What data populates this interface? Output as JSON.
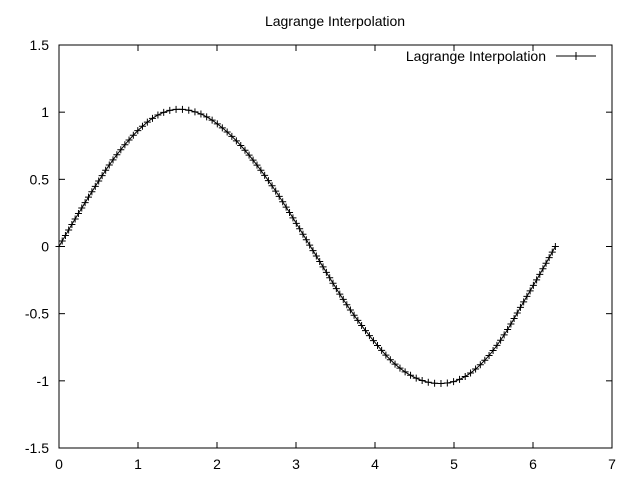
{
  "chart_data": {
    "type": "line",
    "title": "Lagrange Interpolation",
    "xlabel": "",
    "ylabel": "",
    "xlim": [
      0,
      7
    ],
    "ylim": [
      -1.5,
      1.5
    ],
    "x_ticks": [
      0,
      1,
      2,
      3,
      4,
      5,
      6,
      7
    ],
    "y_ticks": [
      -1.5,
      -1,
      -0.5,
      0,
      0.5,
      1,
      1.5
    ],
    "x_tick_labels": [
      "0",
      "1",
      "2",
      "3",
      "4",
      "5",
      "6",
      "7"
    ],
    "y_tick_labels": [
      "-1.5",
      "-1",
      "-0.5",
      "0",
      "0.5",
      "1",
      "1.5"
    ],
    "grid": false,
    "legend": {
      "position": "top-right",
      "entries": [
        "Lagrange Interpolation"
      ]
    },
    "series": [
      {
        "name": "Lagrange Interpolation",
        "marker": "plus",
        "color": "#000000",
        "x": [
          0,
          0.2094,
          0.4189,
          0.6283,
          0.8378,
          1.0472,
          1.2566,
          1.4661,
          1.6755,
          1.885,
          2.0944,
          2.3038,
          2.5133,
          2.7227,
          2.9322,
          3.1416,
          3.351,
          3.5605,
          3.7699,
          3.9794,
          4.1888,
          4.3982,
          4.6077,
          4.8171,
          5.0265,
          5.236,
          5.4454,
          5.6549,
          5.8643,
          6.0737,
          6.2832
        ],
        "y": [
          0,
          0.21,
          0.41,
          0.6,
          0.76,
          0.89,
          0.98,
          1.02,
          1.01,
          0.96,
          0.87,
          0.75,
          0.6,
          0.43,
          0.24,
          0.04,
          -0.16,
          -0.36,
          -0.54,
          -0.7,
          -0.84,
          -0.94,
          -1.0,
          -1.02,
          -1.0,
          -0.93,
          -0.81,
          -0.64,
          -0.43,
          -0.22,
          0
        ]
      }
    ]
  }
}
